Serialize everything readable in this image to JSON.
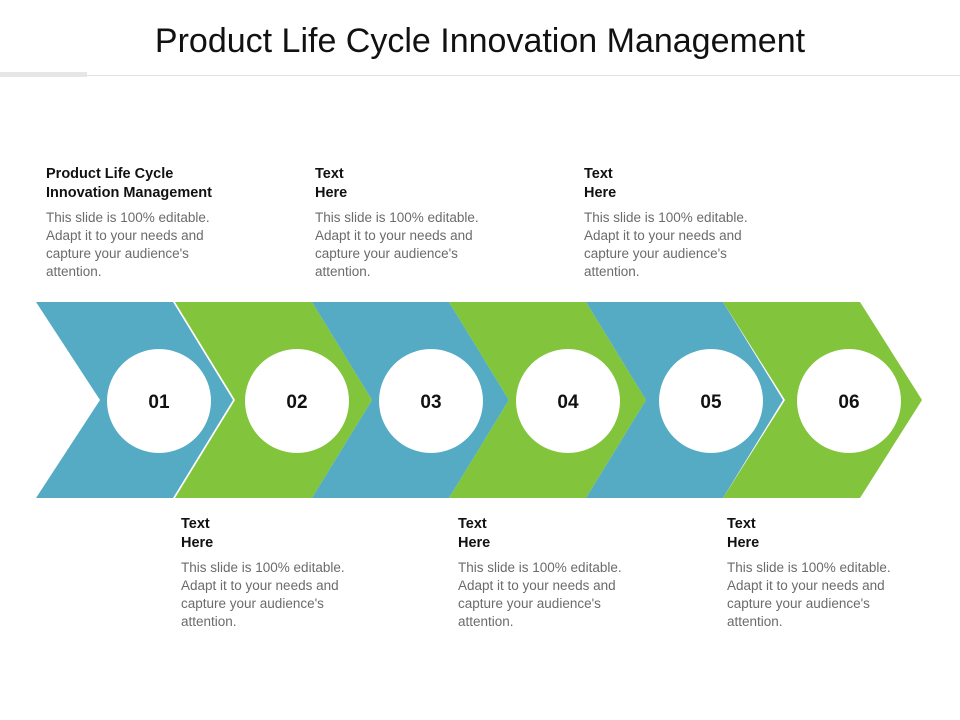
{
  "title": "Product Life Cycle Innovation Management",
  "colors": {
    "blue": "#55aac4",
    "green": "#82c53c",
    "circle": "#ffffff"
  },
  "steps": [
    {
      "number": "01",
      "color": "blue"
    },
    {
      "number": "02",
      "color": "green"
    },
    {
      "number": "03",
      "color": "blue"
    },
    {
      "number": "04",
      "color": "green"
    },
    {
      "number": "05",
      "color": "blue"
    },
    {
      "number": "06",
      "color": "green"
    }
  ],
  "blocks": [
    {
      "heading": "Product Life Cycle\nInnovation Management",
      "body": "This slide is 100% editable. Adapt it to your needs and capture your audience's attention."
    },
    {
      "heading": "Text\nHere",
      "body": "This slide is 100% editable. Adapt it to your needs and capture your audience's attention."
    },
    {
      "heading": "Text\nHere",
      "body": "This slide is 100% editable. Adapt it to your needs and capture your audience's attention."
    },
    {
      "heading": "Text\nHere",
      "body": "This slide is 100% editable. Adapt it to your needs and capture your audience's attention."
    },
    {
      "heading": "Text\nHere",
      "body": "This slide is 100% editable. Adapt it to your needs and capture your audience's attention."
    },
    {
      "heading": "Text\nHere",
      "body": "This slide is 100% editable. Adapt it to your needs and capture your audience's attention."
    }
  ]
}
